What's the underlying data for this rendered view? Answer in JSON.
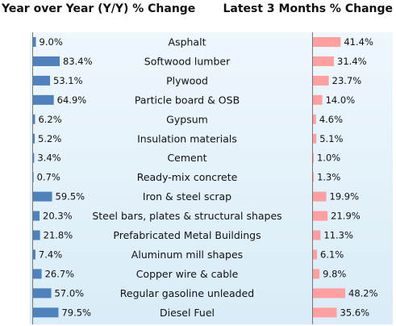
{
  "chart_data": {
    "type": "bar",
    "categories": [
      "Asphalt",
      "Softwood lumber",
      "Plywood",
      "Particle board & OSB",
      "Gypsum",
      "Insulation materials",
      "Cement",
      "Ready-mix concrete",
      "Iron & steel scrap",
      "Steel bars, plates & structural shapes",
      "Prefabricated Metal Buildings",
      "Aluminum mill shapes",
      "Copper wire & cable",
      "Regular gasoline unleaded",
      "Diesel Fuel"
    ],
    "series": [
      {
        "name": "Year over Year (Y/Y) % Change",
        "values": [
          9.0,
          83.4,
          53.1,
          64.9,
          6.2,
          5.2,
          3.4,
          0.7,
          59.5,
          20.3,
          21.8,
          7.4,
          26.7,
          57.0,
          79.5
        ],
        "labels": [
          "9.0%",
          "83.4%",
          "53.1%",
          "64.9%",
          "6.2%",
          "5.2%",
          "3.4%",
          "0.7%",
          "59.5%",
          "20.3%",
          "21.8%",
          "7.4%",
          "26.7%",
          "57.0%",
          "79.5%"
        ],
        "color": "#4f81bd"
      },
      {
        "name": "Latest 3 Months % Change",
        "values": [
          41.4,
          31.4,
          23.7,
          14.0,
          4.6,
          5.1,
          1.0,
          1.3,
          19.9,
          21.9,
          11.3,
          6.1,
          9.8,
          48.2,
          35.6
        ],
        "labels": [
          "41.4%",
          "31.4%",
          "23.7%",
          "14.0%",
          "4.6%",
          "5.1%",
          "1.0%",
          "1.3%",
          "19.9%",
          "21.9%",
          "11.3%",
          "6.1%",
          "9.8%",
          "48.2%",
          "35.6%"
        ],
        "color": "#ff9f9f"
      }
    ]
  }
}
